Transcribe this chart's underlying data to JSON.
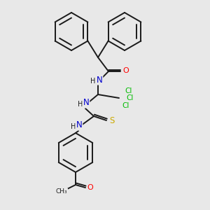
{
  "bg_color": "#e8e8e8",
  "bond_color": "#1a1a1a",
  "atom_colors": {
    "N": "#0000cd",
    "O": "#ff0000",
    "S": "#ccaa00",
    "Cl": "#00bb00",
    "C": "#1a1a1a",
    "H": "#1a1a1a"
  },
  "bg_color_light": "#e8e8e8"
}
